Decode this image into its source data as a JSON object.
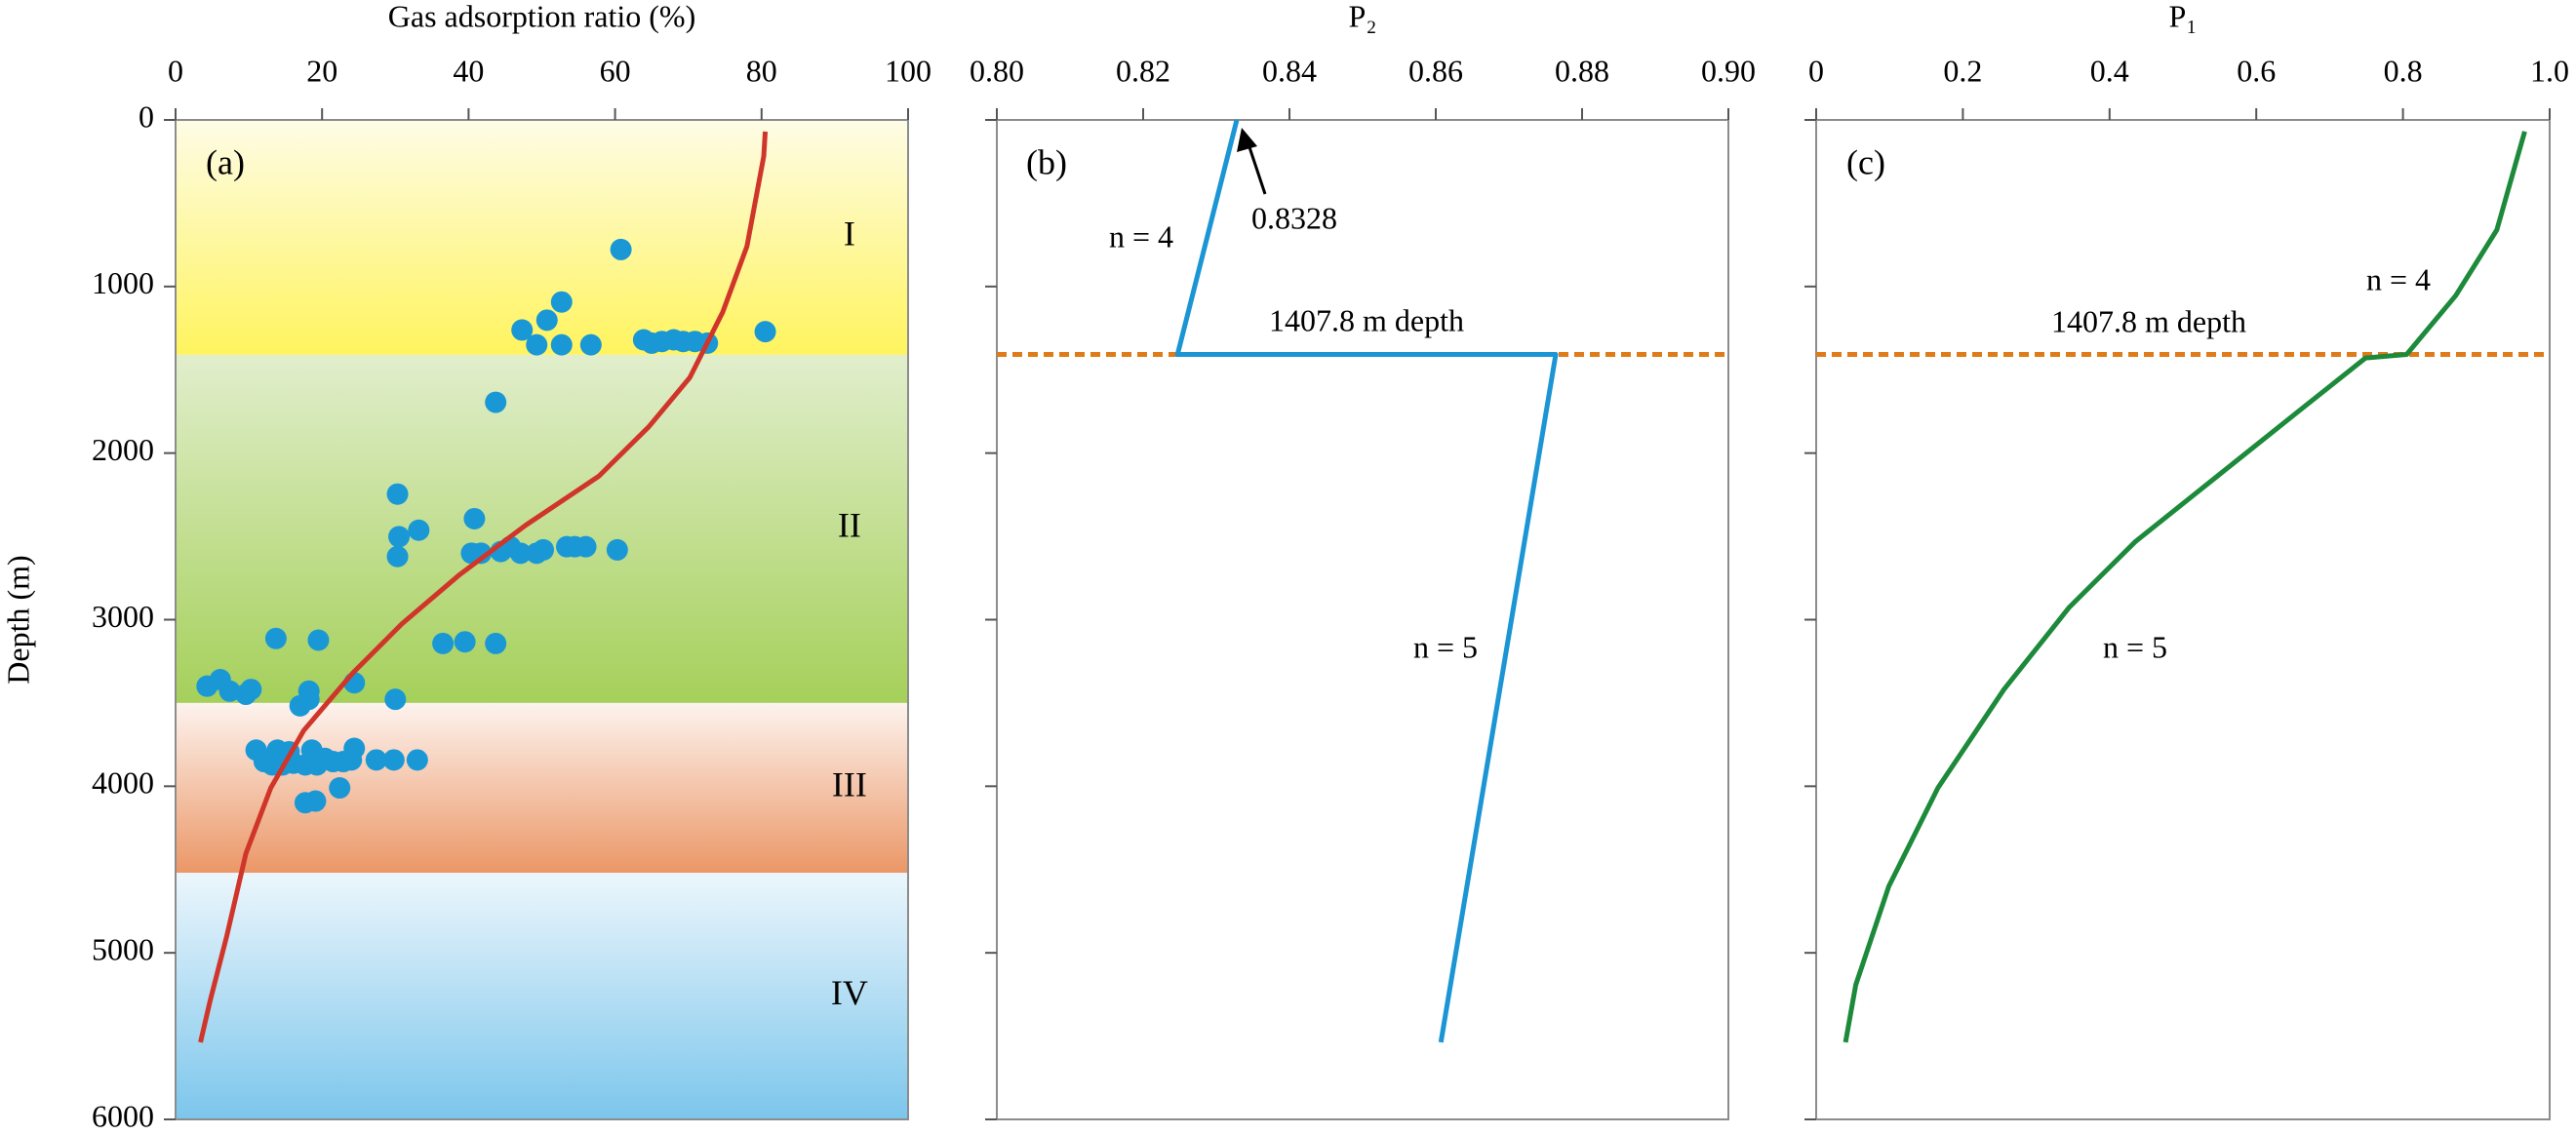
{
  "chart_data": [
    {
      "type": "scatter",
      "panel_label": "(a)",
      "xlabel": "Gas adsorption ratio (%)",
      "ylabel": "Depth (m)",
      "xlim": [
        0,
        100
      ],
      "xticks": [
        0,
        20,
        40,
        60,
        80,
        100
      ],
      "ylim": [
        0,
        6000
      ],
      "yticks": [
        0,
        1000,
        2000,
        3000,
        4000,
        5000,
        6000
      ],
      "y_inverted": true,
      "show_ytick_labels": true,
      "zones": [
        {
          "label": "I",
          "from": 0,
          "to": 1410,
          "colors": [
            "#fefce6",
            "#fff45e"
          ],
          "label_color": "#d32f2f"
        },
        {
          "label": "II",
          "from": 1410,
          "to": 3500,
          "colors": [
            "#e1eecc",
            "#a5d05a"
          ],
          "label_color": "#d32f2f"
        },
        {
          "label": "III",
          "from": 3500,
          "to": 4520,
          "colors": [
            "#fdf3ee",
            "#eb9767"
          ],
          "label_color": "#d32f2f"
        },
        {
          "label": "IV",
          "from": 4520,
          "to": 6000,
          "colors": [
            "#ecf6fc",
            "#7cc6ec"
          ],
          "label_color": "#d32f2f"
        }
      ],
      "series": [
        {
          "mode": "markers",
          "color": "#1a98d6",
          "x": [
            60.8,
            52.7,
            50.7,
            47.3,
            49.3,
            52.7,
            56.7,
            63.9,
            65,
            66.4,
            68,
            69.3,
            70.9,
            72.6,
            80.5,
            43.7,
            30.3,
            40.8,
            33.2,
            30.5,
            30.3,
            40.4,
            41.7,
            44.4,
            45.7,
            47.1,
            49.3,
            50.2,
            53.4,
            54.5,
            56,
            60.3,
            13.7,
            19.5,
            36.5,
            39.5,
            43.7,
            4.3,
            6.1,
            7.4,
            9.6,
            10.3,
            18.2,
            24.4,
            18.2,
            17,
            30,
            11,
            13.9,
            15.5,
            12.1,
            13.2,
            14.6,
            16.1,
            17.7,
            19.3,
            18.6,
            20.4,
            21.5,
            22.9,
            24.4,
            24,
            27.4,
            29.8,
            33,
            22.4,
            17.7,
            19.1
          ],
          "values": [
            778,
            1093,
            1202,
            1261,
            1350,
            1350,
            1350,
            1320,
            1340,
            1330,
            1320,
            1330,
            1330,
            1340,
            1271,
            1695,
            2246,
            2394,
            2463,
            2502,
            2621,
            2601,
            2601,
            2591,
            2562,
            2601,
            2601,
            2581,
            2562,
            2562,
            2562,
            2581,
            3113,
            3123,
            3143,
            3133,
            3143,
            3399,
            3360,
            3429,
            3448,
            3419,
            3429,
            3379,
            3478,
            3517,
            3478,
            3783,
            3783,
            3793,
            3852,
            3872,
            3872,
            3862,
            3872,
            3872,
            3783,
            3833,
            3852,
            3852,
            3773,
            3842,
            3842,
            3842,
            3842,
            4010,
            4099,
            4089
          ]
        },
        {
          "mode": "line",
          "color": "#d0352a",
          "x": [
            80.5,
            80.3,
            78,
            74.7,
            70.2,
            64.6,
            57.8,
            47.8,
            38.8,
            30.9,
            24.2,
            17.5,
            13,
            9.6,
            7,
            4.7,
            3.4
          ],
          "values": [
            70,
            217,
            759,
            1153,
            1547,
            1842,
            2138,
            2433,
            2729,
            3025,
            3320,
            3665,
            4010,
            4404,
            4897,
            5291,
            5537
          ]
        }
      ],
      "annotations": []
    },
    {
      "type": "line",
      "panel_label": "(b)",
      "xlabel": "P₂",
      "xlim": [
        0.8,
        0.9
      ],
      "xticks": [
        {
          "value": 0.8,
          "label": "0.80"
        },
        0.82,
        0.84,
        0.86,
        0.88,
        {
          "value": 0.9,
          "label": "0.90"
        }
      ],
      "ylim": [
        0,
        6000
      ],
      "yticks": [
        0,
        1000,
        2000,
        3000,
        4000,
        5000,
        6000
      ],
      "y_inverted": true,
      "show_ytick_labels": false,
      "hline": {
        "value": 1407.8,
        "label": "1407.8 m depth",
        "color": "#e07b1a"
      },
      "series": [
        {
          "mode": "line",
          "color": "#1b95d4",
          "x": [
            0.8328,
            0.8247,
            0.8764,
            0.8607
          ],
          "values": [
            0,
            1407.8,
            1407.8,
            5537
          ]
        }
      ],
      "annotations": [
        "n = 4",
        "0.8328",
        "n = 5"
      ]
    },
    {
      "type": "line",
      "panel_label": "(c)",
      "xlabel": "P₁",
      "xlim": [
        0,
        1
      ],
      "xticks": [
        0,
        0.2,
        0.4,
        0.6,
        0.8,
        {
          "value": 1,
          "label": "1.0"
        }
      ],
      "ylim": [
        0,
        6000
      ],
      "yticks": [
        0,
        1000,
        2000,
        3000,
        4000,
        5000,
        6000
      ],
      "y_inverted": true,
      "show_ytick_labels": false,
      "hline": {
        "value": 1407.8,
        "label": "1407.8 m depth",
        "color": "#e07b1a"
      },
      "series": [
        {
          "mode": "line",
          "color": "#1c8a3a",
          "x": [
            0.966,
            0.928,
            0.872,
            0.805,
            0.749,
            0.659,
            0.547,
            0.435,
            0.345,
            0.256,
            0.166,
            0.099,
            0.054,
            0.04
          ],
          "values": [
            69,
            660,
            1054,
            1407.8,
            1429,
            1744,
            2138,
            2532,
            2926,
            3419,
            4010,
            4601,
            5192,
            5537
          ]
        }
      ],
      "annotations": [
        "n = 4",
        "n = 5"
      ]
    }
  ]
}
